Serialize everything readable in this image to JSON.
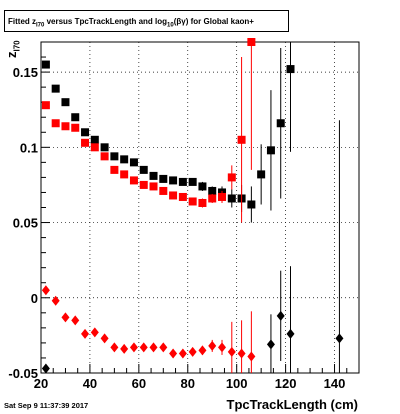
{
  "chart_data": {
    "type": "scatter",
    "title": {
      "pre": "Fitted  z",
      "sub1": "I70",
      "mid": " versus TpcTrackLength and log",
      "sub2": "10",
      "post": "(βγ) for Global kaon+"
    },
    "xlabel": "TpcTrackLength (cm)",
    "ylabel": {
      "main": "z",
      "sub": "I70"
    },
    "xlim": [
      20,
      150
    ],
    "ylim": [
      -0.05,
      0.17
    ],
    "grid": true,
    "x_ticks": [
      20,
      40,
      60,
      80,
      100,
      120,
      140
    ],
    "y_ticks": [
      {
        "value": 0.15,
        "label": "0.15"
      },
      {
        "value": 0.1,
        "label": "0.1"
      },
      {
        "value": 0.05,
        "label": "0.05"
      },
      {
        "value": 0,
        "label": "0"
      },
      {
        "value": -0.05,
        "label": "-0.05"
      }
    ],
    "series": [
      {
        "marker": "square",
        "color": "#000000",
        "points": [
          {
            "x": 22,
            "y": 0.155,
            "e": 0.002
          },
          {
            "x": 26,
            "y": 0.139,
            "e": 0.002
          },
          {
            "x": 30,
            "y": 0.13,
            "e": 0.002
          },
          {
            "x": 34,
            "y": 0.12,
            "e": 0.002
          },
          {
            "x": 38,
            "y": 0.11,
            "e": 0.002
          },
          {
            "x": 42,
            "y": 0.105,
            "e": 0.002
          },
          {
            "x": 46,
            "y": 0.1,
            "e": 0.002
          },
          {
            "x": 50,
            "y": 0.094,
            "e": 0.002
          },
          {
            "x": 54,
            "y": 0.092,
            "e": 0.002
          },
          {
            "x": 58,
            "y": 0.09,
            "e": 0.002
          },
          {
            "x": 62,
            "y": 0.085,
            "e": 0.002
          },
          {
            "x": 66,
            "y": 0.081,
            "e": 0.002
          },
          {
            "x": 70,
            "y": 0.079,
            "e": 0.002
          },
          {
            "x": 74,
            "y": 0.078,
            "e": 0.002
          },
          {
            "x": 78,
            "y": 0.077,
            "e": 0.002
          },
          {
            "x": 82,
            "y": 0.077,
            "e": 0.002
          },
          {
            "x": 86,
            "y": 0.074,
            "e": 0.003
          },
          {
            "x": 90,
            "y": 0.071,
            "e": 0.003
          },
          {
            "x": 94,
            "y": 0.07,
            "e": 0.004
          },
          {
            "x": 98,
            "y": 0.066,
            "e": 0.006
          },
          {
            "x": 102,
            "y": 0.066,
            "e": 0.009
          },
          {
            "x": 106,
            "y": 0.062,
            "e": 0.012
          },
          {
            "x": 110,
            "y": 0.082,
            "e": 0.02
          },
          {
            "x": 114,
            "y": 0.098,
            "e": 0.04
          },
          {
            "x": 118,
            "y": 0.116,
            "e": 0.05
          },
          {
            "x": 122,
            "y": 0.152,
            "e": 0.055
          }
        ]
      },
      {
        "marker": "square",
        "color": "#ff0000",
        "points": [
          {
            "x": 22,
            "y": 0.128,
            "e": 0.002
          },
          {
            "x": 26,
            "y": 0.116,
            "e": 0.002
          },
          {
            "x": 30,
            "y": 0.114,
            "e": 0.002
          },
          {
            "x": 34,
            "y": 0.113,
            "e": 0.002
          },
          {
            "x": 38,
            "y": 0.103,
            "e": 0.002
          },
          {
            "x": 42,
            "y": 0.1,
            "e": 0.002
          },
          {
            "x": 46,
            "y": 0.094,
            "e": 0.002
          },
          {
            "x": 50,
            "y": 0.085,
            "e": 0.002
          },
          {
            "x": 54,
            "y": 0.082,
            "e": 0.002
          },
          {
            "x": 58,
            "y": 0.078,
            "e": 0.002
          },
          {
            "x": 62,
            "y": 0.075,
            "e": 0.002
          },
          {
            "x": 66,
            "y": 0.074,
            "e": 0.002
          },
          {
            "x": 70,
            "y": 0.071,
            "e": 0.002
          },
          {
            "x": 74,
            "y": 0.068,
            "e": 0.002
          },
          {
            "x": 78,
            "y": 0.067,
            "e": 0.002
          },
          {
            "x": 82,
            "y": 0.064,
            "e": 0.002
          },
          {
            "x": 86,
            "y": 0.063,
            "e": 0.003
          },
          {
            "x": 90,
            "y": 0.066,
            "e": 0.003
          },
          {
            "x": 94,
            "y": 0.067,
            "e": 0.004
          },
          {
            "x": 98,
            "y": 0.08,
            "e": 0.008
          },
          {
            "x": 102,
            "y": 0.105,
            "e": 0.055
          },
          {
            "x": 106,
            "y": 0.17,
            "e": 0.085
          }
        ]
      },
      {
        "marker": "diamond",
        "color": "#ff0000",
        "points": [
          {
            "x": 22,
            "y": 0.005,
            "e": 0.002
          },
          {
            "x": 26,
            "y": -0.002,
            "e": 0.002
          },
          {
            "x": 30,
            "y": -0.013,
            "e": 0.002
          },
          {
            "x": 34,
            "y": -0.015,
            "e": 0.002
          },
          {
            "x": 38,
            "y": -0.024,
            "e": 0.002
          },
          {
            "x": 42,
            "y": -0.023,
            "e": 0.002
          },
          {
            "x": 46,
            "y": -0.027,
            "e": 0.002
          },
          {
            "x": 50,
            "y": -0.033,
            "e": 0.002
          },
          {
            "x": 54,
            "y": -0.034,
            "e": 0.002
          },
          {
            "x": 58,
            "y": -0.033,
            "e": 0.002
          },
          {
            "x": 62,
            "y": -0.033,
            "e": 0.002
          },
          {
            "x": 66,
            "y": -0.033,
            "e": 0.002
          },
          {
            "x": 70,
            "y": -0.033,
            "e": 0.002
          },
          {
            "x": 74,
            "y": -0.037,
            "e": 0.002
          },
          {
            "x": 78,
            "y": -0.037,
            "e": 0.002
          },
          {
            "x": 82,
            "y": -0.036,
            "e": 0.002
          },
          {
            "x": 86,
            "y": -0.035,
            "e": 0.003
          },
          {
            "x": 90,
            "y": -0.032,
            "e": 0.004
          },
          {
            "x": 94,
            "y": -0.033,
            "e": 0.005
          },
          {
            "x": 98,
            "y": -0.036,
            "e": 0.02
          },
          {
            "x": 102,
            "y": -0.037,
            "e": 0.022
          },
          {
            "x": 106,
            "y": -0.039,
            "e": 0.03
          }
        ]
      },
      {
        "marker": "diamond",
        "color": "#000000",
        "points": [
          {
            "x": 22,
            "y": -0.047,
            "e": 0.002
          },
          {
            "x": 114,
            "y": -0.031,
            "e": 0.02
          },
          {
            "x": 118,
            "y": -0.012,
            "e": 0.03
          },
          {
            "x": 122,
            "y": -0.024,
            "e": 0.045
          },
          {
            "x": 142,
            "y": -0.027,
            "e": 0.145
          }
        ]
      }
    ]
  },
  "footer": {
    "datestamp": "Sat Sep  9 11:37:39 2017"
  }
}
